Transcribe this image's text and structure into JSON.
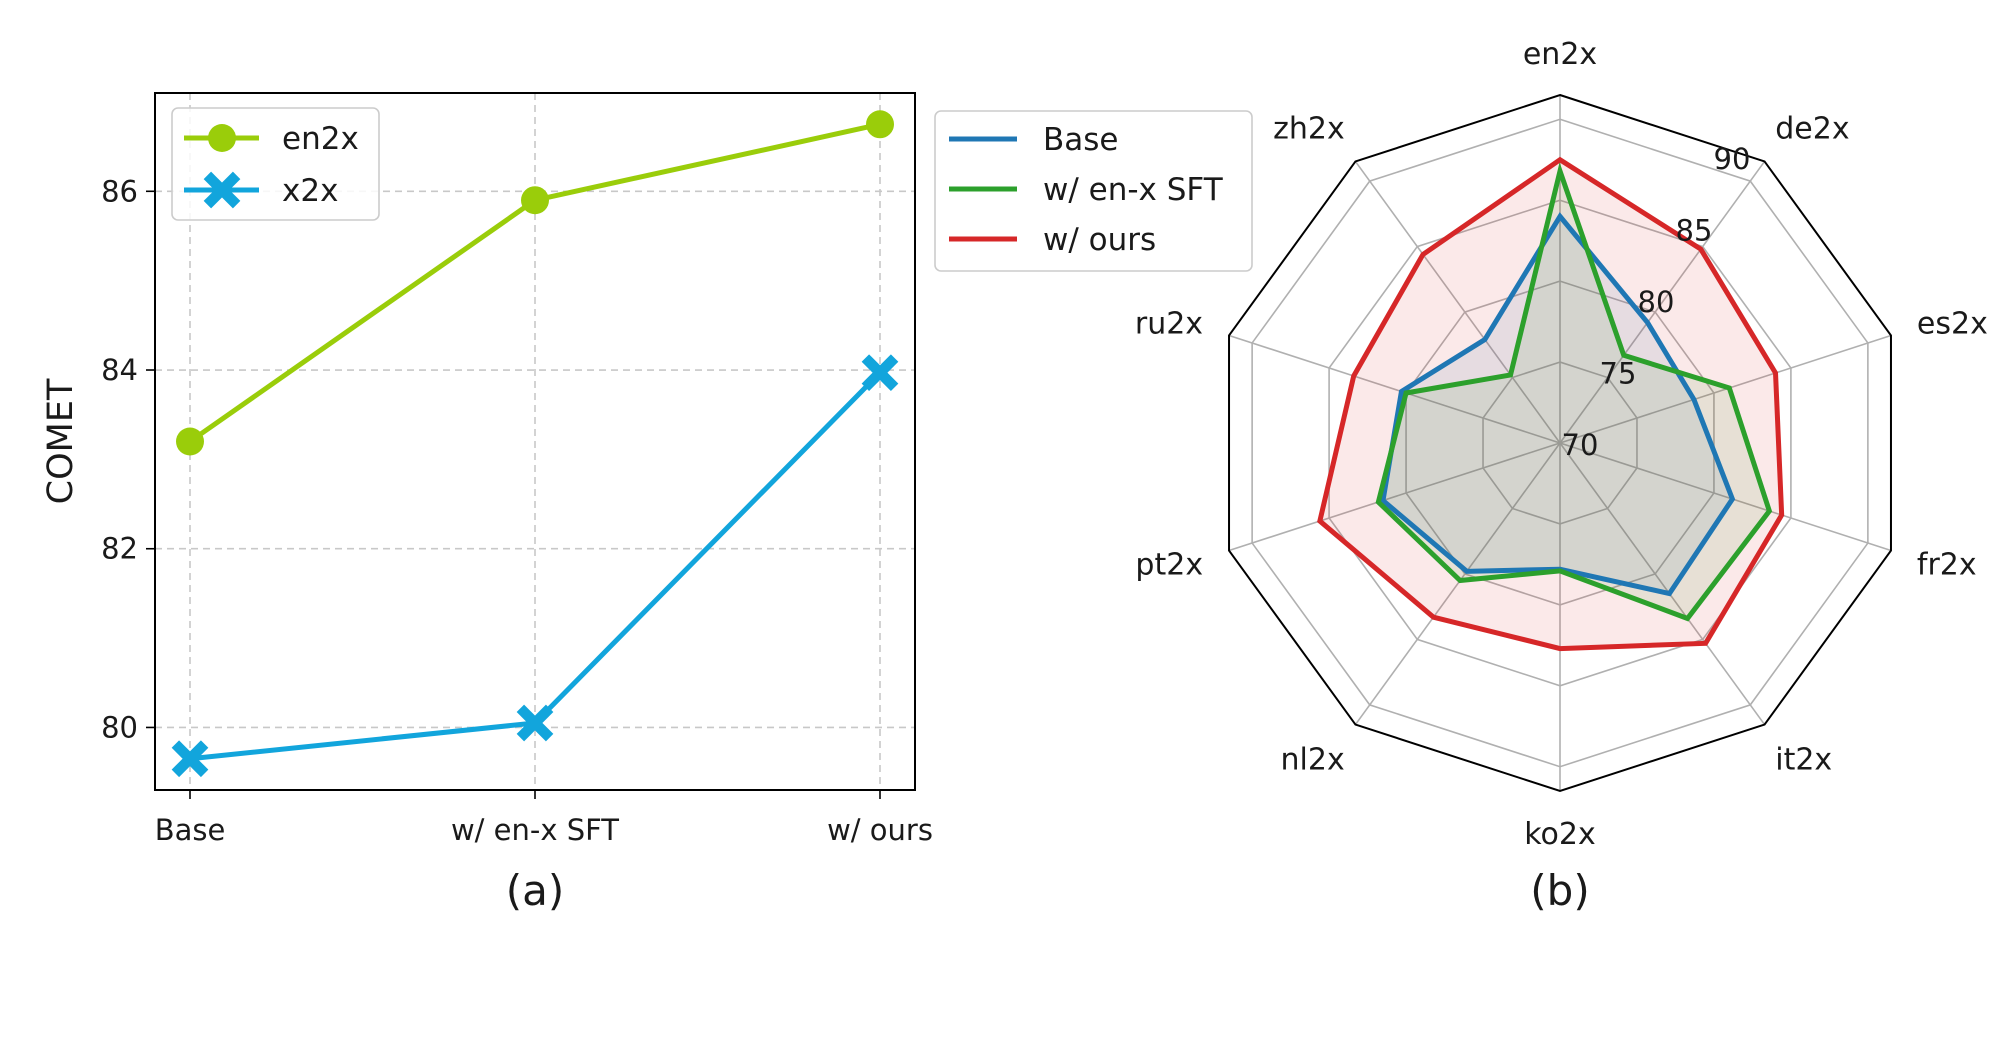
{
  "chart_data": [
    {
      "type": "line",
      "caption": "(a)",
      "ylabel": "COMET",
      "categories": [
        "Base",
        "w/ en-x SFT",
        "w/ ours"
      ],
      "yticks": [
        "80",
        "82",
        "84",
        "86"
      ],
      "ylim": [
        79.3,
        87.1
      ],
      "grid": true,
      "legend_position": "top-left",
      "series": [
        {
          "name": "en2x",
          "values": [
            83.2,
            85.9,
            86.75
          ],
          "color": "#9acd0a",
          "marker": "circle"
        },
        {
          "name": "x2x",
          "values": [
            79.65,
            80.05,
            83.97
          ],
          "color": "#12a5dc",
          "marker": "x"
        }
      ]
    },
    {
      "type": "radar",
      "caption": "(b)",
      "axes": [
        "en2x",
        "de2x",
        "es2x",
        "fr2x",
        "it2x",
        "ko2x",
        "nl2x",
        "pt2x",
        "ru2x",
        "zh2x"
      ],
      "rlim": [
        70,
        91.5
      ],
      "rticks": [
        "70",
        "75",
        "80",
        "85",
        "90"
      ],
      "legend_position": "outside-top-left",
      "series": [
        {
          "name": "Base",
          "values": [
            84.0,
            79.2,
            78.7,
            81.2,
            81.5,
            77.8,
            79.8,
            81.5,
            80.3,
            77.9
          ],
          "color": "#1f77b4"
        },
        {
          "name": "w/ en-x SFT",
          "values": [
            86.8,
            76.7,
            81.0,
            83.6,
            83.4,
            77.9,
            80.5,
            81.8,
            80.0,
            75.2
          ],
          "color": "#2ca02c"
        },
        {
          "name": "w/ ours",
          "values": [
            87.5,
            84.8,
            84.0,
            84.4,
            85.3,
            82.7,
            83.3,
            85.6,
            83.4,
            84.4
          ],
          "color": "#d62728"
        }
      ]
    }
  ]
}
